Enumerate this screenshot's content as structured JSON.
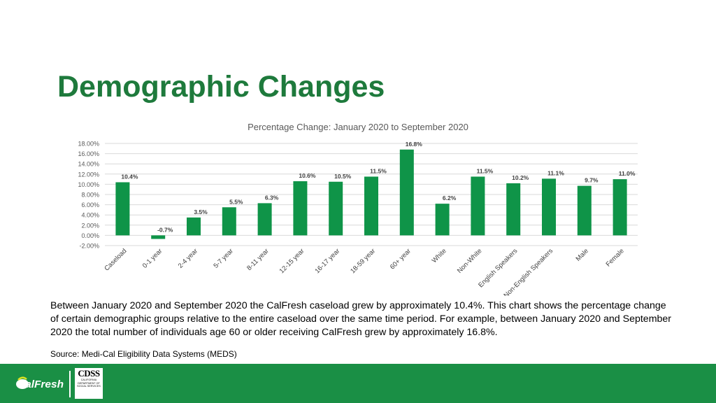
{
  "page": {
    "title": "Demographic Changes",
    "description": "Between January 2020 and September 2020 the CalFresh caseload grew by approximately 10.4%. This chart shows the percentage change of certain demographic groups relative to the entire caseload over the same time period. For example, between January 2020 and September 2020 the total number of individuals age 60 or older receiving CalFresh grew by approximately 16.8%.",
    "source": "Source: Medi-Cal Eligibility Data Systems (MEDS)"
  },
  "footer": {
    "calfresh_logo_text": "CalFresh",
    "cdss_logo_text": "CDSS",
    "cdss_logo_subtext": [
      "CALIFORNIA",
      "DEPARTMENT OF",
      "SOCIAL SERVICES"
    ]
  },
  "colors": {
    "title": "#1e7a3c",
    "bar": "#0f9448",
    "footer": "#1a8f45",
    "grid": "#d9d9d9"
  },
  "chart_data": {
    "type": "bar",
    "title": "Percentage Change: January 2020 to September 2020",
    "categories": [
      "Caseload",
      "0-1 year",
      "2-4 year",
      "5-7 year",
      "8-11 year",
      "12-15 year",
      "16-17 year",
      "18-59 year",
      "60+ year",
      "White",
      "Non-White",
      "English Speakers",
      "Non-English Speakers",
      "Male",
      "Female"
    ],
    "values": [
      10.4,
      -0.7,
      3.5,
      5.5,
      6.3,
      10.6,
      10.5,
      11.5,
      16.8,
      6.2,
      11.5,
      10.2,
      11.1,
      9.7,
      11.0
    ],
    "data_labels": [
      "10.4%",
      "-0.7%",
      "3.5%",
      "5.5%",
      "6.3%",
      "10.6%",
      "10.5%",
      "11.5%",
      "16.8%",
      "6.2%",
      "11.5%",
      "10.2%",
      "11.1%",
      "9.7%",
      "11.0%"
    ],
    "y_ticks": [
      18,
      16,
      14,
      12,
      10,
      8,
      6,
      4,
      2,
      0,
      -2
    ],
    "y_tick_labels": [
      "18.00%",
      "16.00%",
      "14.00%",
      "12.00%",
      "10.00%",
      "8.00%",
      "6.00%",
      "4.00%",
      "2.00%",
      "0.00%",
      "-2.00%"
    ],
    "ylim": [
      -2,
      18
    ],
    "grid": true,
    "legend": "none"
  }
}
